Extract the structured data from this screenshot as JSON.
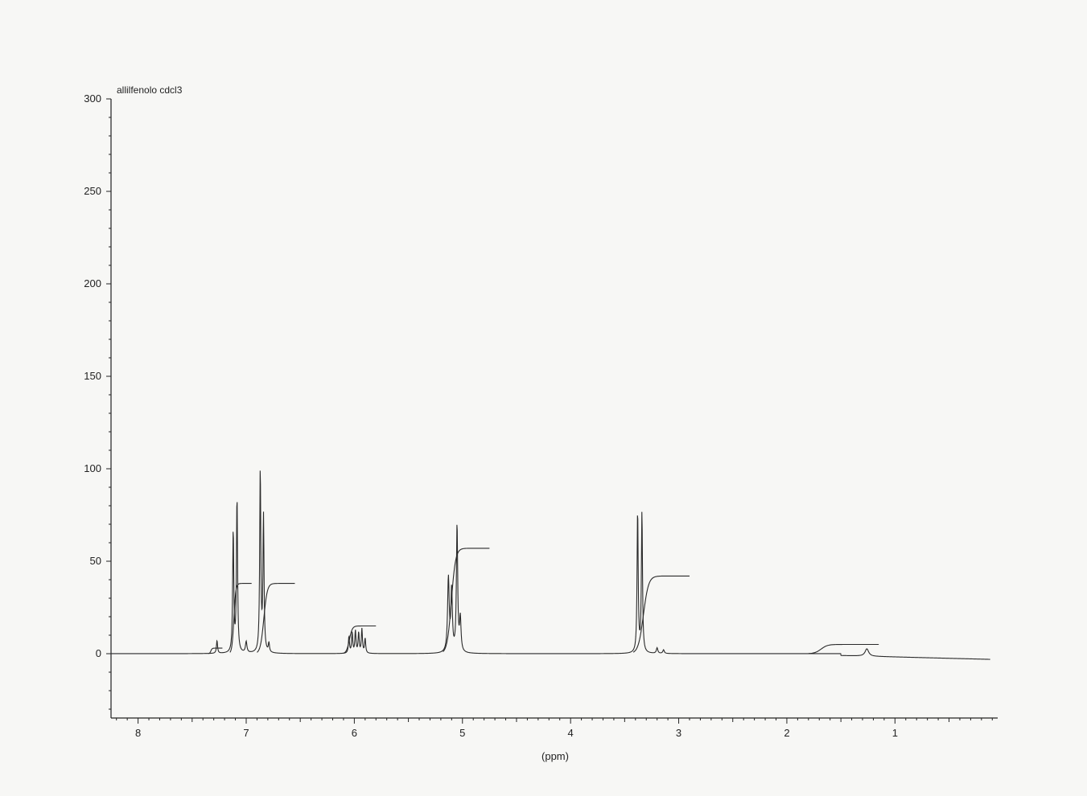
{
  "chart_data": {
    "type": "line",
    "title": "allilfenolo cdcl3",
    "xlabel": "(ppm)",
    "ylabel": "",
    "x_reversed": true,
    "xlim": [
      8.25,
      0.05
    ],
    "ylim": [
      -35,
      300
    ],
    "x_ticks": [
      8,
      7,
      6,
      5,
      4,
      3,
      2,
      1
    ],
    "y_ticks": [
      0,
      50,
      100,
      150,
      200,
      250,
      300
    ],
    "grid": false,
    "colors": {
      "trace": "#2a2a2a",
      "axis": "#222222",
      "background": "#f7f7f5"
    },
    "series": [
      {
        "role": "spectrum",
        "peaks": [
          {
            "x": 7.27,
            "height": 7,
            "width": 0.006
          },
          {
            "x": 7.12,
            "height": 66,
            "width": 0.006
          },
          {
            "x": 7.085,
            "height": 84,
            "width": 0.006
          },
          {
            "x": 7.0,
            "height": 6,
            "width": 0.008
          },
          {
            "x": 6.87,
            "height": 99,
            "width": 0.006
          },
          {
            "x": 6.84,
            "height": 73,
            "width": 0.006
          },
          {
            "x": 6.79,
            "height": 5,
            "width": 0.006
          },
          {
            "x": 6.05,
            "height": 9,
            "width": 0.006
          },
          {
            "x": 6.02,
            "height": 11,
            "width": 0.006
          },
          {
            "x": 5.99,
            "height": 12,
            "width": 0.006
          },
          {
            "x": 5.96,
            "height": 11,
            "width": 0.006
          },
          {
            "x": 5.93,
            "height": 13,
            "width": 0.006
          },
          {
            "x": 5.9,
            "height": 8,
            "width": 0.006
          },
          {
            "x": 5.13,
            "height": 40,
            "width": 0.009
          },
          {
            "x": 5.1,
            "height": 33,
            "width": 0.008
          },
          {
            "x": 5.05,
            "height": 69,
            "width": 0.007
          },
          {
            "x": 5.02,
            "height": 18,
            "width": 0.008
          },
          {
            "x": 3.38,
            "height": 77,
            "width": 0.006
          },
          {
            "x": 3.34,
            "height": 76,
            "width": 0.006
          },
          {
            "x": 3.2,
            "height": 3,
            "width": 0.008
          },
          {
            "x": 3.14,
            "height": 2,
            "width": 0.008
          },
          {
            "x": 1.26,
            "height": 4,
            "width": 0.02
          }
        ]
      },
      {
        "role": "integral",
        "segments": [
          {
            "from": 7.35,
            "to": 7.22,
            "y0": 0,
            "y1": 3
          },
          {
            "from": 7.15,
            "to": 6.95,
            "y0": 0,
            "y1": 38
          },
          {
            "from": 6.9,
            "to": 6.55,
            "y0": 0,
            "y1": 38
          },
          {
            "from": 6.1,
            "to": 5.8,
            "y0": 0,
            "y1": 15
          },
          {
            "from": 5.18,
            "to": 4.75,
            "y0": 0,
            "y1": 57
          },
          {
            "from": 3.42,
            "to": 2.9,
            "y0": 0,
            "y1": 42
          },
          {
            "from": 1.8,
            "to": 1.15,
            "y0": 0,
            "y1": 5
          }
        ]
      }
    ]
  }
}
